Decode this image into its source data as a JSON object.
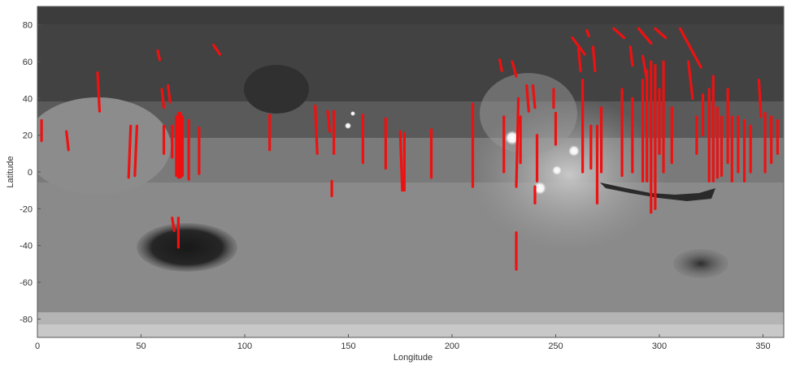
{
  "chart_data": {
    "type": "scatter",
    "title": "",
    "xlabel": "Longitude",
    "ylabel": "Latitude",
    "xlim": [
      0,
      360
    ],
    "ylim": [
      -90,
      90
    ],
    "xticks": [
      0,
      50,
      100,
      150,
      200,
      250,
      300,
      350
    ],
    "yticks": [
      -80,
      -60,
      -40,
      -20,
      0,
      20,
      40,
      60,
      80
    ],
    "grid": false,
    "legend": "none",
    "background": "grayscale Mars topography map",
    "colors": {
      "tracks": "#ee1111",
      "axis_text": "#333333"
    },
    "tracks": [
      {
        "x1": 2,
        "y1": 28,
        "x2": 2,
        "y2": 17
      },
      {
        "x1": 14,
        "y1": 22,
        "x2": 15,
        "y2": 12
      },
      {
        "x1": 29,
        "y1": 54,
        "x2": 30,
        "y2": 33
      },
      {
        "x1": 45,
        "y1": 25,
        "x2": 44,
        "y2": -3
      },
      {
        "x1": 48,
        "y1": 25,
        "x2": 47,
        "y2": -2
      },
      {
        "x1": 58,
        "y1": 66,
        "x2": 59,
        "y2": 61
      },
      {
        "x1": 60,
        "y1": 45,
        "x2": 61,
        "y2": 35
      },
      {
        "x1": 61,
        "y1": 25,
        "x2": 61,
        "y2": 10
      },
      {
        "x1": 63,
        "y1": 47,
        "x2": 64,
        "y2": 38
      },
      {
        "x1": 65,
        "y1": 25,
        "x2": 65,
        "y2": 8
      },
      {
        "x1": 67,
        "y1": 30,
        "x2": 67,
        "y2": -2
      },
      {
        "x1": 68,
        "y1": 32,
        "x2": 68,
        "y2": -3
      },
      {
        "x1": 69,
        "y1": 32,
        "x2": 69,
        "y2": -3
      },
      {
        "x1": 70,
        "y1": 30,
        "x2": 70,
        "y2": -2
      },
      {
        "x1": 73,
        "y1": 28,
        "x2": 73,
        "y2": -4
      },
      {
        "x1": 78,
        "y1": 24,
        "x2": 78,
        "y2": -1
      },
      {
        "x1": 85,
        "y1": 69,
        "x2": 88,
        "y2": 64
      },
      {
        "x1": 65,
        "y1": -25,
        "x2": 66,
        "y2": -32
      },
      {
        "x1": 68,
        "y1": -25,
        "x2": 68,
        "y2": -41
      },
      {
        "x1": 112,
        "y1": 31,
        "x2": 112,
        "y2": 12
      },
      {
        "x1": 134,
        "y1": 36,
        "x2": 135,
        "y2": 10
      },
      {
        "x1": 140,
        "y1": 33,
        "x2": 141,
        "y2": 22
      },
      {
        "x1": 143,
        "y1": 33,
        "x2": 143,
        "y2": 10
      },
      {
        "x1": 142,
        "y1": -5,
        "x2": 142,
        "y2": -13
      },
      {
        "x1": 157,
        "y1": 31,
        "x2": 157,
        "y2": 5
      },
      {
        "x1": 168,
        "y1": 29,
        "x2": 168,
        "y2": 2
      },
      {
        "x1": 175,
        "y1": 22,
        "x2": 176,
        "y2": -10
      },
      {
        "x1": 177,
        "y1": 21,
        "x2": 177,
        "y2": -10
      },
      {
        "x1": 190,
        "y1": 23,
        "x2": 190,
        "y2": -3
      },
      {
        "x1": 210,
        "y1": 37,
        "x2": 210,
        "y2": -8
      },
      {
        "x1": 223,
        "y1": 61,
        "x2": 224,
        "y2": 55
      },
      {
        "x1": 229,
        "y1": 60,
        "x2": 231,
        "y2": 52
      },
      {
        "x1": 225,
        "y1": 30,
        "x2": 225,
        "y2": 0
      },
      {
        "x1": 232,
        "y1": 40,
        "x2": 231,
        "y2": -8
      },
      {
        "x1": 233,
        "y1": 30,
        "x2": 233,
        "y2": 5
      },
      {
        "x1": 236,
        "y1": 47,
        "x2": 237,
        "y2": 33
      },
      {
        "x1": 239,
        "y1": 47,
        "x2": 240,
        "y2": 35
      },
      {
        "x1": 241,
        "y1": 20,
        "x2": 241,
        "y2": -5
      },
      {
        "x1": 240,
        "y1": -8,
        "x2": 240,
        "y2": -17
      },
      {
        "x1": 231,
        "y1": -33,
        "x2": 231,
        "y2": -53
      },
      {
        "x1": 249,
        "y1": 45,
        "x2": 249,
        "y2": 35
      },
      {
        "x1": 250,
        "y1": 32,
        "x2": 250,
        "y2": 15
      },
      {
        "x1": 258,
        "y1": 73,
        "x2": 264,
        "y2": 64
      },
      {
        "x1": 261,
        "y1": 67,
        "x2": 262,
        "y2": 55
      },
      {
        "x1": 265,
        "y1": 77,
        "x2": 266,
        "y2": 74
      },
      {
        "x1": 268,
        "y1": 68,
        "x2": 269,
        "y2": 55
      },
      {
        "x1": 263,
        "y1": 50,
        "x2": 263,
        "y2": 0
      },
      {
        "x1": 267,
        "y1": 25,
        "x2": 267,
        "y2": 2
      },
      {
        "x1": 270,
        "y1": 25,
        "x2": 270,
        "y2": -17
      },
      {
        "x1": 272,
        "y1": 35,
        "x2": 272,
        "y2": 0
      },
      {
        "x1": 278,
        "y1": 78,
        "x2": 283,
        "y2": 73
      },
      {
        "x1": 282,
        "y1": 45,
        "x2": 282,
        "y2": -2
      },
      {
        "x1": 286,
        "y1": 68,
        "x2": 287,
        "y2": 58
      },
      {
        "x1": 287,
        "y1": 40,
        "x2": 287,
        "y2": 0
      },
      {
        "x1": 290,
        "y1": 78,
        "x2": 296,
        "y2": 70
      },
      {
        "x1": 292,
        "y1": 63,
        "x2": 294,
        "y2": 50
      },
      {
        "x1": 292,
        "y1": 50,
        "x2": 292,
        "y2": -5
      },
      {
        "x1": 294,
        "y1": 55,
        "x2": 294,
        "y2": -5
      },
      {
        "x1": 296,
        "y1": 60,
        "x2": 296,
        "y2": -22
      },
      {
        "x1": 298,
        "y1": 58,
        "x2": 298,
        "y2": -20
      },
      {
        "x1": 300,
        "y1": 45,
        "x2": 300,
        "y2": 10
      },
      {
        "x1": 302,
        "y1": 60,
        "x2": 302,
        "y2": 0
      },
      {
        "x1": 306,
        "y1": 35,
        "x2": 306,
        "y2": 5
      },
      {
        "x1": 298,
        "y1": 78,
        "x2": 303,
        "y2": 73
      },
      {
        "x1": 310,
        "y1": 78,
        "x2": 320,
        "y2": 57
      },
      {
        "x1": 314,
        "y1": 60,
        "x2": 316,
        "y2": 40
      },
      {
        "x1": 318,
        "y1": 30,
        "x2": 318,
        "y2": 10
      },
      {
        "x1": 321,
        "y1": 42,
        "x2": 321,
        "y2": 20
      },
      {
        "x1": 324,
        "y1": 45,
        "x2": 324,
        "y2": -5
      },
      {
        "x1": 326,
        "y1": 52,
        "x2": 326,
        "y2": -5
      },
      {
        "x1": 328,
        "y1": 35,
        "x2": 328,
        "y2": -3
      },
      {
        "x1": 330,
        "y1": 30,
        "x2": 330,
        "y2": -2
      },
      {
        "x1": 333,
        "y1": 45,
        "x2": 333,
        "y2": 5
      },
      {
        "x1": 335,
        "y1": 30,
        "x2": 335,
        "y2": -5
      },
      {
        "x1": 338,
        "y1": 30,
        "x2": 338,
        "y2": 0
      },
      {
        "x1": 341,
        "y1": 28,
        "x2": 341,
        "y2": -5
      },
      {
        "x1": 344,
        "y1": 25,
        "x2": 344,
        "y2": 0
      },
      {
        "x1": 348,
        "y1": 50,
        "x2": 349,
        "y2": 30
      },
      {
        "x1": 351,
        "y1": 32,
        "x2": 351,
        "y2": 0
      },
      {
        "x1": 354,
        "y1": 30,
        "x2": 354,
        "y2": 5
      },
      {
        "x1": 357,
        "y1": 28,
        "x2": 357,
        "y2": 10
      }
    ]
  }
}
